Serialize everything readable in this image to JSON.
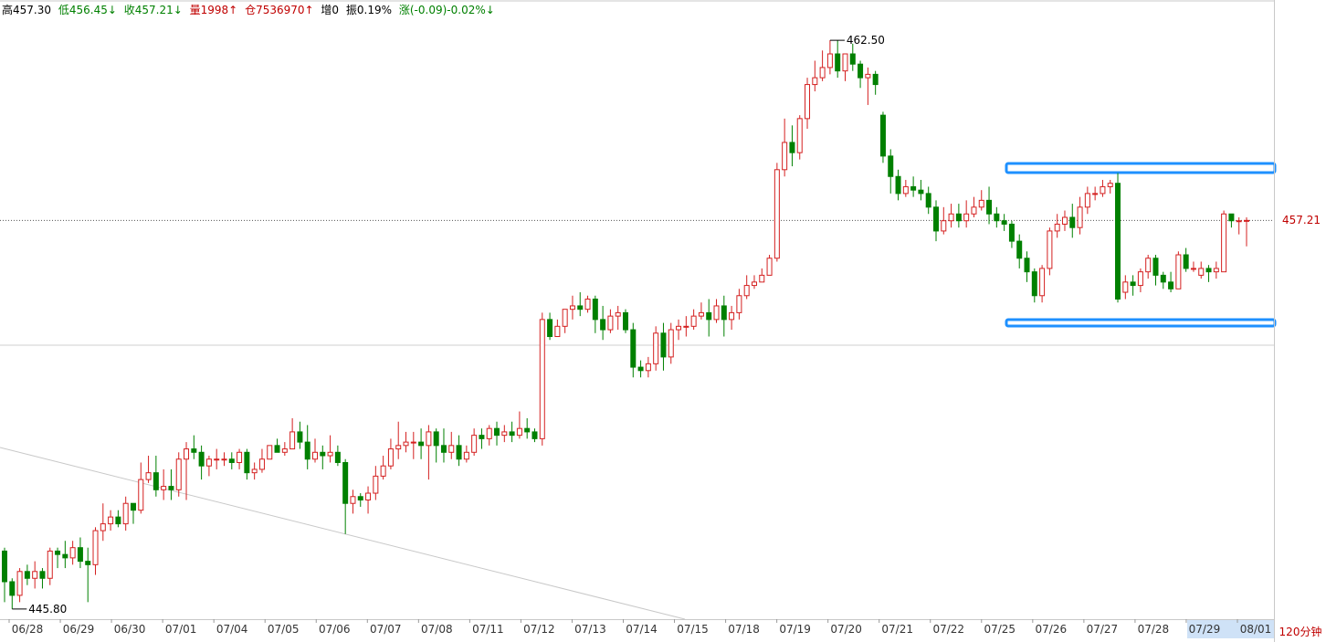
{
  "info": {
    "high_label": "高",
    "high": "457.30",
    "low_label": "低",
    "low": "456.45↓",
    "close_label": "收",
    "close": "457.21↓",
    "volume_label": "量",
    "volume": "1998↑",
    "open_interest_label": "仓",
    "open_interest": "7536970↑",
    "increase_label": "增",
    "increase": "0",
    "amplitude_label": "振",
    "amplitude": "0.19%",
    "change_label": "涨",
    "change": "(-0.09)-0.02%↓"
  },
  "period": "120分钟",
  "current_price_label": "457.21",
  "colors": {
    "up": "#d42020",
    "down": "#008000",
    "box": "#1e90ff",
    "text_red": "#c00000",
    "grid": "#c8c8c8"
  },
  "chart_data": {
    "type": "candlestick",
    "price_range": [
      445.5,
      463.2
    ],
    "annotations": {
      "max_price": "462.50",
      "min_price": "445.80",
      "current_price": 457.21
    },
    "dates": [
      "06/28",
      "06/29",
      "06/30",
      "07/01",
      "07/04",
      "07/05",
      "07/06",
      "07/07",
      "07/08",
      "07/11",
      "07/12",
      "07/13",
      "07/14",
      "07/15",
      "07/18",
      "07/19",
      "07/20",
      "07/21",
      "07/22",
      "07/25",
      "07/26",
      "07/27",
      "07/28",
      "07/29",
      "08/01"
    ],
    "candles": [
      [
        447.5,
        446.6,
        447.6,
        446.0
      ],
      [
        446.6,
        446.2,
        446.7,
        445.8
      ],
      [
        446.2,
        446.9,
        447.0,
        446.0
      ],
      [
        446.9,
        446.7,
        447.1,
        446.5
      ],
      [
        446.7,
        446.9,
        447.2,
        446.4
      ],
      [
        446.9,
        446.7,
        447.0,
        446.4
      ],
      [
        446.7,
        447.5,
        447.6,
        446.5
      ],
      [
        447.5,
        447.4,
        447.6,
        447.0
      ],
      [
        447.4,
        447.3,
        447.8,
        447.0
      ],
      [
        447.3,
        447.6,
        447.8,
        447.1
      ],
      [
        447.6,
        447.2,
        447.9,
        447.0
      ],
      [
        447.2,
        447.1,
        447.6,
        446.0
      ],
      [
        447.1,
        448.1,
        448.2,
        446.8
      ],
      [
        448.1,
        448.3,
        448.9,
        447.8
      ],
      [
        448.3,
        448.5,
        448.7,
        448.1
      ],
      [
        448.5,
        448.3,
        448.7,
        448.2
      ],
      [
        448.3,
        448.9,
        449.1,
        448.1
      ],
      [
        448.9,
        448.7,
        448.9,
        448.3
      ],
      [
        448.7,
        449.6,
        450.1,
        448.6
      ],
      [
        449.6,
        449.8,
        450.3,
        449.5
      ],
      [
        449.8,
        449.3,
        450.3,
        449.1
      ],
      [
        449.3,
        449.4,
        449.9,
        449.0
      ],
      [
        449.4,
        449.3,
        449.9,
        449.0
      ],
      [
        449.3,
        450.2,
        450.4,
        449.1
      ],
      [
        450.2,
        450.5,
        450.7,
        449.0
      ],
      [
        450.5,
        450.4,
        450.9,
        450.2
      ],
      [
        450.4,
        450.0,
        450.6,
        449.6
      ],
      [
        450.0,
        450.2,
        450.3,
        449.7
      ],
      [
        450.2,
        450.2,
        450.5,
        449.9
      ],
      [
        450.2,
        450.2,
        450.4,
        450.0
      ],
      [
        450.2,
        450.1,
        450.4,
        449.9
      ],
      [
        450.1,
        450.4,
        450.5,
        449.9
      ],
      [
        450.4,
        449.8,
        450.5,
        449.6
      ],
      [
        449.8,
        449.9,
        450.1,
        449.6
      ],
      [
        449.9,
        450.2,
        450.5,
        449.8
      ],
      [
        450.2,
        450.6,
        450.6,
        450.4
      ],
      [
        450.6,
        450.4,
        450.8,
        450.4
      ],
      [
        450.4,
        450.5,
        450.7,
        450.3
      ],
      [
        450.5,
        451.0,
        451.4,
        450.8
      ],
      [
        451.0,
        450.7,
        451.3,
        450.5
      ],
      [
        450.7,
        450.2,
        451.2,
        449.9
      ],
      [
        450.2,
        450.4,
        450.8,
        450.1
      ],
      [
        450.4,
        450.3,
        450.6,
        449.9
      ],
      [
        450.3,
        450.4,
        450.9,
        450.1
      ],
      [
        450.4,
        450.1,
        450.6,
        450.0
      ],
      [
        450.1,
        448.9,
        450.2,
        448.0
      ],
      [
        448.9,
        449.1,
        449.3,
        448.6
      ],
      [
        449.1,
        449.0,
        449.2,
        448.8
      ],
      [
        449.0,
        449.2,
        449.4,
        448.6
      ],
      [
        449.2,
        449.7,
        450.0,
        449.0
      ],
      [
        449.7,
        450.0,
        450.3,
        449.6
      ],
      [
        450.0,
        450.5,
        450.8,
        449.9
      ],
      [
        450.5,
        450.6,
        451.3,
        450.2
      ],
      [
        450.6,
        450.7,
        451.0,
        450.4
      ],
      [
        450.7,
        450.7,
        451.0,
        450.2
      ],
      [
        450.7,
        450.6,
        451.1,
        450.2
      ],
      [
        450.6,
        451.0,
        451.2,
        449.6
      ],
      [
        451.0,
        450.6,
        451.1,
        450.1
      ],
      [
        450.6,
        450.4,
        451.1,
        450.1
      ],
      [
        450.4,
        450.6,
        451.0,
        450.2
      ],
      [
        450.6,
        450.2,
        450.9,
        450.0
      ],
      [
        450.2,
        450.4,
        450.6,
        450.1
      ],
      [
        450.4,
        450.9,
        451.1,
        450.3
      ],
      [
        450.9,
        450.8,
        451.1,
        450.5
      ],
      [
        450.8,
        451.1,
        451.2,
        450.6
      ],
      [
        451.1,
        450.9,
        451.3,
        450.6
      ],
      [
        450.9,
        451.0,
        451.2,
        450.7
      ],
      [
        451.0,
        450.9,
        451.3,
        450.7
      ],
      [
        450.9,
        451.1,
        451.6,
        450.8
      ],
      [
        451.1,
        451.0,
        451.4,
        450.8
      ],
      [
        451.0,
        450.8,
        451.1,
        450.7
      ],
      [
        450.8,
        454.3,
        454.5,
        450.6
      ],
      [
        454.3,
        453.8,
        454.5,
        453.7
      ],
      [
        453.8,
        454.1,
        454.3,
        453.9
      ],
      [
        454.1,
        454.6,
        454.6,
        453.9
      ],
      [
        454.6,
        454.7,
        455.0,
        454.3
      ],
      [
        454.7,
        454.6,
        455.1,
        454.4
      ],
      [
        454.6,
        454.9,
        455.0,
        454.5
      ],
      [
        454.9,
        454.3,
        455.0,
        453.9
      ],
      [
        454.3,
        454.0,
        454.7,
        453.7
      ],
      [
        454.0,
        454.4,
        454.6,
        453.9
      ],
      [
        454.4,
        454.5,
        454.7,
        454.0
      ],
      [
        454.5,
        454.0,
        454.6,
        453.9
      ],
      [
        454.0,
        452.9,
        454.2,
        452.6
      ],
      [
        452.9,
        452.8,
        453.1,
        452.6
      ],
      [
        452.8,
        453.0,
        453.2,
        452.6
      ],
      [
        453.0,
        453.9,
        454.1,
        452.8
      ],
      [
        453.9,
        453.2,
        454.2,
        452.8
      ],
      [
        453.2,
        454.0,
        454.2,
        453.0
      ],
      [
        454.0,
        454.1,
        454.3,
        453.7
      ],
      [
        454.1,
        454.1,
        454.4,
        453.8
      ],
      [
        454.1,
        454.4,
        454.6,
        454.0
      ],
      [
        454.4,
        454.5,
        454.8,
        454.3
      ],
      [
        454.5,
        454.3,
        454.9,
        453.8
      ],
      [
        454.3,
        454.7,
        454.9,
        454.2
      ],
      [
        454.7,
        454.3,
        455.0,
        453.8
      ],
      [
        454.3,
        454.5,
        454.7,
        454.0
      ],
      [
        454.5,
        455.0,
        455.2,
        454.3
      ],
      [
        455.0,
        455.3,
        455.6,
        454.9
      ],
      [
        455.3,
        455.4,
        455.6,
        455.2
      ],
      [
        455.4,
        455.6,
        455.8,
        455.4
      ],
      [
        455.6,
        456.1,
        456.2,
        455.6
      ],
      [
        456.1,
        458.7,
        458.9,
        456.0
      ],
      [
        458.7,
        459.5,
        460.2,
        458.5
      ],
      [
        459.5,
        459.2,
        460.0,
        458.8
      ],
      [
        459.2,
        460.2,
        460.3,
        459.0
      ],
      [
        460.2,
        461.2,
        461.4,
        459.9
      ],
      [
        461.2,
        461.4,
        461.9,
        461.0
      ],
      [
        461.4,
        461.7,
        462.2,
        461.3
      ],
      [
        461.7,
        462.1,
        462.5,
        461.5
      ],
      [
        462.1,
        461.6,
        462.5,
        461.4
      ],
      [
        461.6,
        462.1,
        462.1,
        461.3
      ],
      [
        462.1,
        461.8,
        462.4,
        461.6
      ],
      [
        461.8,
        461.4,
        461.9,
        461.1
      ],
      [
        461.4,
        461.5,
        461.7,
        460.6
      ],
      [
        461.5,
        461.2,
        461.6,
        460.9
      ],
      [
        460.3,
        459.1,
        460.4,
        458.9
      ],
      [
        459.1,
        458.5,
        459.3,
        458.0
      ],
      [
        458.5,
        458.0,
        458.7,
        457.8
      ],
      [
        458.0,
        458.2,
        458.4,
        457.9
      ],
      [
        458.2,
        458.1,
        458.5,
        457.9
      ],
      [
        458.1,
        458.0,
        458.4,
        457.8
      ],
      [
        458.0,
        457.6,
        458.2,
        457.4
      ],
      [
        457.6,
        456.9,
        457.8,
        456.6
      ],
      [
        456.9,
        457.2,
        457.6,
        456.8
      ],
      [
        457.2,
        457.4,
        457.7,
        457.0
      ],
      [
        457.4,
        457.2,
        457.7,
        457.0
      ],
      [
        457.2,
        457.4,
        457.8,
        457.0
      ],
      [
        457.4,
        457.6,
        457.9,
        457.3
      ],
      [
        457.6,
        457.8,
        458.1,
        457.5
      ],
      [
        457.8,
        457.4,
        458.2,
        457.1
      ],
      [
        457.4,
        457.2,
        457.6,
        457.0
      ],
      [
        457.2,
        457.1,
        457.4,
        456.9
      ],
      [
        457.1,
        456.6,
        457.2,
        456.4
      ],
      [
        456.6,
        456.1,
        456.8,
        455.8
      ],
      [
        456.1,
        455.7,
        456.3,
        455.4
      ],
      [
        455.7,
        455.0,
        455.8,
        454.8
      ],
      [
        455.0,
        455.8,
        455.9,
        454.8
      ],
      [
        455.8,
        456.9,
        457.0,
        455.6
      ],
      [
        456.9,
        457.1,
        457.4,
        456.7
      ],
      [
        457.1,
        457.3,
        457.5,
        456.9
      ],
      [
        457.3,
        457.0,
        457.7,
        456.7
      ],
      [
        457.0,
        457.6,
        457.9,
        456.8
      ],
      [
        457.6,
        458.0,
        458.2,
        457.4
      ],
      [
        458.0,
        458.0,
        458.2,
        457.8
      ],
      [
        458.0,
        458.2,
        458.4,
        457.9
      ],
      [
        458.2,
        458.3,
        458.4,
        458.0
      ],
      [
        458.3,
        454.9,
        458.6,
        454.8
      ],
      [
        455.1,
        455.4,
        455.6,
        454.9
      ],
      [
        455.4,
        455.3,
        455.6,
        455.0
      ],
      [
        455.3,
        455.7,
        455.8,
        455.1
      ],
      [
        455.7,
        456.1,
        456.2,
        455.5
      ],
      [
        456.1,
        455.6,
        456.2,
        455.3
      ],
      [
        455.6,
        455.4,
        455.7,
        455.2
      ],
      [
        455.4,
        455.2,
        455.7,
        455.1
      ],
      [
        455.2,
        456.2,
        456.3,
        455.2
      ],
      [
        456.2,
        455.8,
        456.4,
        455.7
      ],
      [
        455.8,
        455.8,
        456.0,
        455.7
      ],
      [
        455.6,
        455.8,
        456.0,
        455.5
      ],
      [
        455.8,
        455.7,
        455.9,
        455.4
      ],
      [
        455.7,
        455.8,
        456.0,
        455.5
      ],
      [
        455.7,
        457.4,
        457.5,
        455.7
      ],
      [
        457.4,
        457.2,
        457.4,
        457.0
      ],
      [
        457.2,
        457.2,
        457.3,
        456.8
      ],
      [
        457.2,
        457.21,
        457.3,
        456.45
      ]
    ]
  }
}
